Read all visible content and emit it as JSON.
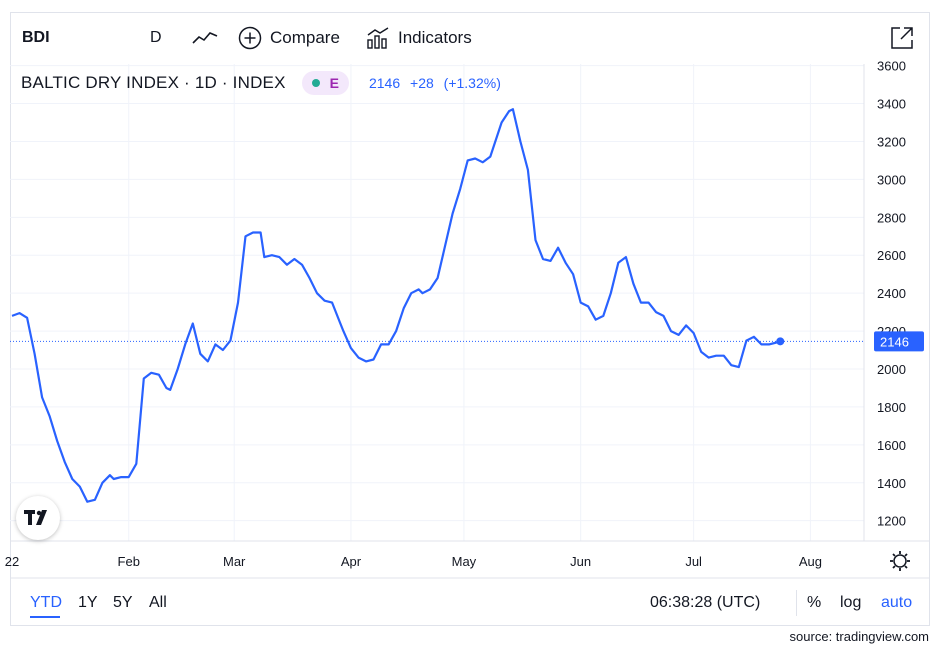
{
  "toolbar": {
    "symbol": "BDI",
    "interval": "D",
    "chart_type_icon": "line-chart-icon",
    "compare_label": "Compare",
    "indicators_label": "Indicators",
    "fullscreen_icon": "fullscreen-icon"
  },
  "legend": {
    "title": "BALTIC DRY INDEX · 1D · INDEX",
    "badge_letter": "E",
    "last": "2146",
    "change": "+28",
    "change_pct": "(+1.32%)"
  },
  "bottom_bar": {
    "ranges": [
      "YTD",
      "1Y",
      "5Y",
      "All"
    ],
    "active_range": "YTD",
    "time": "06:38:28 (UTC)",
    "percent_label": "%",
    "log_label": "log",
    "auto_label": "auto"
  },
  "source": "source: tradingview.com",
  "colors": {
    "line": "#2962ff",
    "grid": "#f0f3fa",
    "text": "#131722",
    "price_label_bg": "#2962ff"
  },
  "chart_data": {
    "type": "line",
    "title": "BALTIC DRY INDEX · 1D · INDEX",
    "xlabel": "",
    "ylabel": "",
    "x_tick_labels": [
      "22",
      "Feb",
      "Mar",
      "Apr",
      "May",
      "Jun",
      "Jul",
      "Aug"
    ],
    "x_tick_days": [
      0,
      31,
      59,
      90,
      120,
      151,
      181,
      212
    ],
    "y_ticks": [
      1200,
      1400,
      1600,
      1800,
      2000,
      2200,
      2400,
      2600,
      2800,
      3000,
      3200,
      3400,
      3600
    ],
    "ylim": [
      1100,
      3650
    ],
    "xlim_days": [
      0,
      224
    ],
    "last_value": 2146,
    "grid": true,
    "series": [
      {
        "x_days": [
          0,
          2,
          4,
          6,
          8,
          10,
          12,
          14,
          16,
          18,
          20,
          22,
          24,
          26,
          27,
          29,
          31,
          33,
          35,
          37,
          39,
          41,
          42,
          44,
          46,
          48,
          50,
          52,
          54,
          56,
          58,
          60,
          62,
          64,
          66,
          67,
          69,
          71,
          73,
          75,
          77,
          79,
          81,
          83,
          85,
          87,
          88,
          90,
          92,
          94,
          96,
          98,
          100,
          102,
          104,
          106,
          108,
          109,
          111,
          113,
          115,
          117,
          119,
          121,
          123,
          125,
          127,
          130,
          132,
          133,
          135,
          137,
          139,
          141,
          143,
          145,
          147,
          149,
          151,
          153,
          155,
          157,
          159,
          161,
          163,
          165,
          167,
          169,
          171,
          173,
          175,
          177,
          179,
          181,
          183,
          185,
          187,
          189,
          191,
          193,
          195,
          197,
          199,
          201,
          203,
          204
        ],
        "values": [
          2280,
          2295,
          2270,
          2080,
          1850,
          1750,
          1620,
          1510,
          1420,
          1380,
          1300,
          1310,
          1400,
          1440,
          1420,
          1430,
          1430,
          1500,
          1950,
          1980,
          1970,
          1900,
          1890,
          2000,
          2130,
          2240,
          2080,
          2040,
          2130,
          2100,
          2150,
          2350,
          2700,
          2720,
          2720,
          2590,
          2600,
          2590,
          2550,
          2580,
          2550,
          2480,
          2400,
          2360,
          2350,
          2250,
          2200,
          2110,
          2060,
          2040,
          2050,
          2130,
          2130,
          2200,
          2320,
          2400,
          2420,
          2400,
          2420,
          2480,
          2650,
          2820,
          2950,
          3100,
          3110,
          3090,
          3120,
          3300,
          3360,
          3370,
          3200,
          3050,
          2680,
          2580,
          2570,
          2640,
          2560,
          2500,
          2350,
          2330,
          2260,
          2280,
          2400,
          2560,
          2590,
          2450,
          2350,
          2350,
          2300,
          2280,
          2200,
          2180,
          2230,
          2190,
          2090,
          2060,
          2070,
          2070,
          2020,
          2010,
          2150,
          2170,
          2130,
          2130,
          2140,
          2146
        ]
      }
    ]
  }
}
